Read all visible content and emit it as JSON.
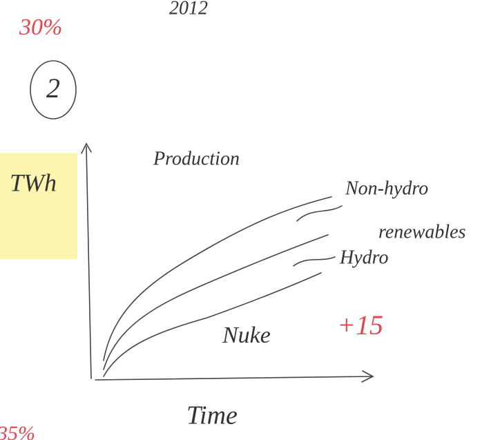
{
  "header": {
    "percent_top": "30%",
    "year": "2012",
    "number": "2"
  },
  "sketch": {
    "y_axis_label": "TWh",
    "title": "Production",
    "series_labels": [
      "Non-hydro",
      "renewables",
      "Hydro",
      "Nuke"
    ],
    "change": "+15",
    "x_axis_label": "Time"
  },
  "footer": {
    "percent_bottom": "35%"
  }
}
